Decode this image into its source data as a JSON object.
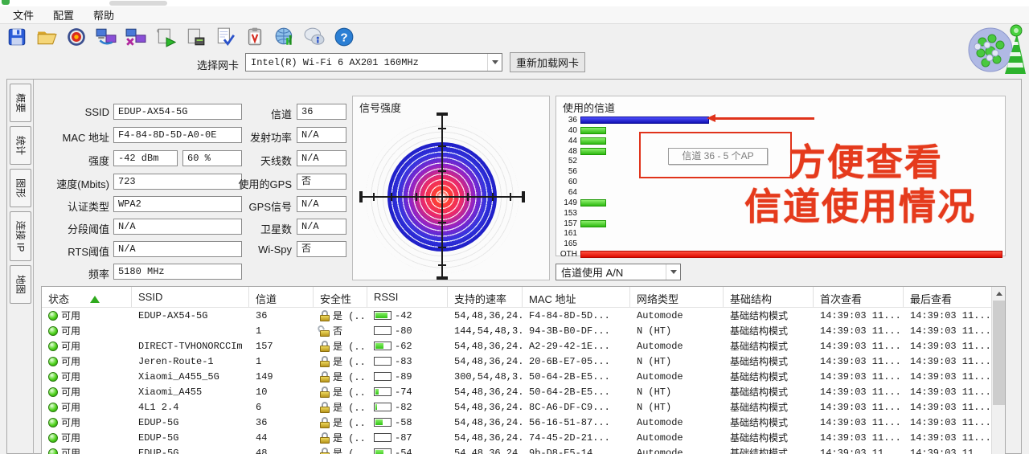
{
  "window": {
    "menu": [
      "文件",
      "配置",
      "帮助"
    ]
  },
  "toolbar": {
    "icons": [
      {
        "name": "save"
      },
      {
        "name": "open"
      },
      {
        "name": "record"
      },
      {
        "name": "net-transfer"
      },
      {
        "name": "net-disconnect"
      },
      {
        "name": "log-run"
      },
      {
        "name": "log-queue"
      },
      {
        "name": "page-check"
      },
      {
        "name": "report"
      },
      {
        "name": "web"
      },
      {
        "name": "feedback"
      },
      {
        "name": "help"
      }
    ]
  },
  "adapter": {
    "label": "选择网卡",
    "value": "Intel(R) Wi-Fi 6 AX201 160MHz",
    "reload_button": "重新加载网卡"
  },
  "sidebar": {
    "tabs": [
      "概要",
      "统计",
      "图形",
      "连接 IP",
      "地图"
    ]
  },
  "summary": {
    "fields_left": [
      {
        "label": "SSID",
        "value": "EDUP-AX54-5G"
      },
      {
        "label": "MAC 地址",
        "value": "F4-84-8D-5D-A0-0E"
      },
      {
        "label": "强度",
        "value": "-42 dBm",
        "value2": "60 %"
      },
      {
        "label": "速度(Mbits)",
        "value": "723"
      },
      {
        "label": "认证类型",
        "value": "WPA2"
      },
      {
        "label": "分段阈值",
        "value": "N/A"
      },
      {
        "label": "RTS阈值",
        "value": "N/A"
      },
      {
        "label": "频率",
        "value": "5180 MHz"
      }
    ],
    "fields_right": [
      {
        "label": "信道",
        "value": "36"
      },
      {
        "label": "发射功率",
        "value": "N/A"
      },
      {
        "label": "天线数",
        "value": "N/A"
      },
      {
        "label": "使用的GPS",
        "value": "否"
      },
      {
        "label": "GPS信号",
        "value": "N/A"
      },
      {
        "label": "卫星数",
        "value": "N/A"
      },
      {
        "label": "Wi-Spy",
        "value": "否"
      }
    ]
  },
  "signal_panel": {
    "title": "信号强度"
  },
  "channel_panel": {
    "title": "使用的信道",
    "tooltip": "信道 36 - 5 个AP",
    "usage_select": "信道使用 A/N",
    "channels": [
      {
        "label": "36",
        "ap_count": 5,
        "color": "blue"
      },
      {
        "label": "40",
        "ap_count": 1,
        "color": "green"
      },
      {
        "label": "44",
        "ap_count": 1,
        "color": "green"
      },
      {
        "label": "48",
        "ap_count": 1,
        "color": "green"
      },
      {
        "label": "52",
        "ap_count": 0,
        "color": "none"
      },
      {
        "label": "56",
        "ap_count": 0,
        "color": "none"
      },
      {
        "label": "60",
        "ap_count": 0,
        "color": "none"
      },
      {
        "label": "64",
        "ap_count": 0,
        "color": "none"
      },
      {
        "label": "149",
        "ap_count": 1,
        "color": "green"
      },
      {
        "label": "153",
        "ap_count": 0,
        "color": "none"
      },
      {
        "label": "157",
        "ap_count": 1,
        "color": "green"
      },
      {
        "label": "161",
        "ap_count": 0,
        "color": "none"
      },
      {
        "label": "165",
        "ap_count": 0,
        "color": "none"
      },
      {
        "label": "OTH",
        "ap_count": 17,
        "color": "red",
        "full": true
      }
    ]
  },
  "annotation": {
    "line1": "方便查看",
    "line2": "信道使用情况",
    "color": "#e53a1c"
  },
  "table": {
    "columns": [
      "状态",
      "SSID",
      "信道",
      "安全性",
      "RSSI",
      "支持的速率",
      "MAC 地址",
      "网络类型",
      "基础结构",
      "首次查看",
      "最后查看"
    ],
    "rows": [
      {
        "status": "可用",
        "ssid": "EDUP-AX54-5G",
        "channel": "36",
        "locked": true,
        "security": "是 (...",
        "rssi": "-42",
        "rssi_fill": 0.75,
        "rates": "54,48,36,24...",
        "mac": "F4-84-8D-5D...",
        "net_type": "Automode",
        "infra": "基础结构模式",
        "first_seen": "14:39:03 11...",
        "last_seen": "14:39:03 11..."
      },
      {
        "status": "可用",
        "ssid": "",
        "channel": "1",
        "locked": false,
        "security": "否",
        "rssi": "-80",
        "rssi_fill": 0,
        "rates": "144,54,48,3...",
        "mac": "94-3B-B0-DF...",
        "net_type": "N (HT)",
        "infra": "基础结构模式",
        "first_seen": "14:39:03 11...",
        "last_seen": "14:39:03 11..."
      },
      {
        "status": "可用",
        "ssid": "DIRECT-TVHONORCCIm",
        "channel": "157",
        "locked": true,
        "security": "是 (...",
        "rssi": "-62",
        "rssi_fill": 0.5,
        "rates": "54,48,36,24...",
        "mac": "A2-29-42-1E...",
        "net_type": "Automode",
        "infra": "基础结构模式",
        "first_seen": "14:39:03 11...",
        "last_seen": "14:39:03 11..."
      },
      {
        "status": "可用",
        "ssid": "Jeren-Route-1",
        "channel": "1",
        "locked": true,
        "security": "是 (...",
        "rssi": "-83",
        "rssi_fill": 0,
        "rates": "54,48,36,24...",
        "mac": "20-6B-E7-05...",
        "net_type": "N (HT)",
        "infra": "基础结构模式",
        "first_seen": "14:39:03 11...",
        "last_seen": "14:39:03 11..."
      },
      {
        "status": "可用",
        "ssid": "Xiaomi_A455_5G",
        "channel": "149",
        "locked": true,
        "security": "是 (...",
        "rssi": "-89",
        "rssi_fill": 0,
        "rates": "300,54,48,3...",
        "mac": "50-64-2B-E5...",
        "net_type": "Automode",
        "infra": "基础结构模式",
        "first_seen": "14:39:03 11...",
        "last_seen": "14:39:03 11..."
      },
      {
        "status": "可用",
        "ssid": "Xiaomi_A455",
        "channel": "10",
        "locked": true,
        "security": "是 (...",
        "rssi": "-74",
        "rssi_fill": 0.2,
        "rates": "54,48,36,24...",
        "mac": "50-64-2B-E5...",
        "net_type": "N (HT)",
        "infra": "基础结构模式",
        "first_seen": "14:39:03 11...",
        "last_seen": "14:39:03 11..."
      },
      {
        "status": "可用",
        "ssid": "4L1 2.4",
        "channel": "6",
        "locked": true,
        "security": "是 (...",
        "rssi": "-82",
        "rssi_fill": 0.12,
        "rates": "54,48,36,24...",
        "mac": "8C-A6-DF-C9...",
        "net_type": "N (HT)",
        "infra": "基础结构模式",
        "first_seen": "14:39:03 11...",
        "last_seen": "14:39:03 11..."
      },
      {
        "status": "可用",
        "ssid": "EDUP-5G",
        "channel": "36",
        "locked": true,
        "security": "是 (...",
        "rssi": "-58",
        "rssi_fill": 0.45,
        "rates": "54,48,36,24...",
        "mac": "56-16-51-87...",
        "net_type": "Automode",
        "infra": "基础结构模式",
        "first_seen": "14:39:03 11...",
        "last_seen": "14:39:03 11..."
      },
      {
        "status": "可用",
        "ssid": "EDUP-5G",
        "channel": "44",
        "locked": true,
        "security": "是 (...",
        "rssi": "-87",
        "rssi_fill": 0,
        "rates": "54,48,36,24...",
        "mac": "74-45-2D-21...",
        "net_type": "Automode",
        "infra": "基础结构模式",
        "first_seen": "14:39:03 11...",
        "last_seen": "14:39:03 11..."
      },
      {
        "status": "可用",
        "ssid": "EDUP-5G",
        "channel": "48",
        "locked": true,
        "security": "是 (...",
        "rssi": "-54",
        "rssi_fill": 0.5,
        "rates": "54,48,36,24...",
        "mac": "9b-D8-E5-14...",
        "net_type": "Automode",
        "infra": "基础结构模式",
        "first_seen": "14:39:03 11...",
        "last_seen": "14:39:03 11..."
      }
    ]
  },
  "colors": {
    "accent_red": "#e53a1c",
    "bar_blue": "#2222cc",
    "bar_green": "#3ecc1a",
    "bar_red": "#ee1111"
  }
}
